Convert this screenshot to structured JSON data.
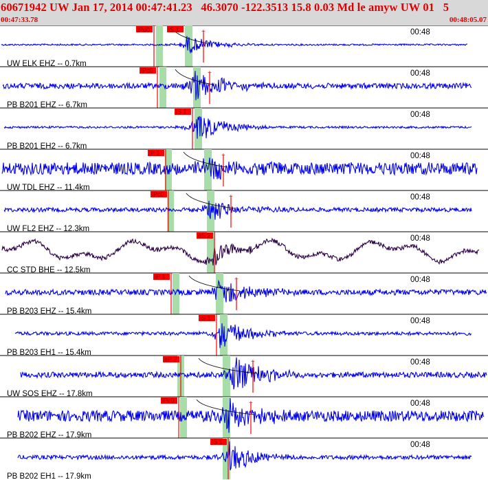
{
  "header": {
    "title": "60671942 UW Jan 17, 2014 00:47:41.23   46.3070 -122.3513 15.8 0.03 Md le amyw UW 01   5",
    "start_time": "00:47:33.78",
    "end_time": "00:48:05.07"
  },
  "colors": {
    "header_bg": "#d8d8d8",
    "header_text": "#e00000",
    "trace": "#0000ee",
    "trace_broadband": "#2a0044",
    "pick_box": "#ff0000",
    "window_band": "#a8dca8",
    "moveout_curve": "#000000"
  },
  "chart_data": {
    "type": "seismogram",
    "time_range": [
      "00:47:33.78",
      "00:48:05.07"
    ],
    "time_tick_label": "00:48",
    "traces": [
      {
        "label": "UW ELK EHZ -- 0.7km",
        "picks": [
          "iPd0",
          "iS 1"
        ],
        "color": "trace"
      },
      {
        "label": "PB B201 EHZ -- 6.7km",
        "picks": [
          "iPc0"
        ],
        "color": "trace"
      },
      {
        "label": "PB B201 EH2 -- 6.7km",
        "picks": [
          "iS 1"
        ],
        "color": "trace"
      },
      {
        "label": "UW TDL EHZ -- 11.4km",
        "picks": [
          "iP 1"
        ],
        "color": "trace"
      },
      {
        "label": "UW FL2 EHZ -- 12.3km",
        "picks": [
          "iPc0"
        ],
        "color": "trace"
      },
      {
        "label": "CC STD BHE -- 12.5km",
        "picks": [
          "eS 2"
        ],
        "color": "trace_broadband"
      },
      {
        "label": "PB B203 EHZ -- 15.4km",
        "picks": [
          "iP 1"
        ],
        "color": "trace"
      },
      {
        "label": "PB B203 EH1 -- 15.4km",
        "picks": [
          "iS 1"
        ],
        "color": "trace"
      },
      {
        "label": "UW SOS EHZ -- 17.8km",
        "picks": [
          "eP 2"
        ],
        "color": "trace"
      },
      {
        "label": "PB B202 EHZ -- 17.9km",
        "picks": [
          "iPc0"
        ],
        "color": "trace"
      },
      {
        "label": "PB B202 EH1 -- 17.9km",
        "picks": [
          "iS 1"
        ],
        "color": "trace"
      }
    ]
  }
}
